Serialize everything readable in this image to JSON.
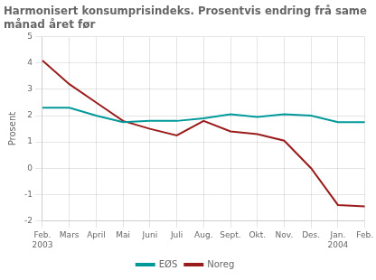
{
  "chart_data": {
    "type": "line",
    "title": "Harmonisert konsumprisindeks. Prosentvis endring frå same\nmånad året før",
    "y_label": "Prosent",
    "categories": [
      "Feb.\n2003",
      "Mars",
      "April",
      "Mai",
      "Juni",
      "Juli",
      "Aug.",
      "Sept.",
      "Okt.",
      "Nov.",
      "Des.",
      "Jan.\n2004",
      "Feb."
    ],
    "series": [
      {
        "name": "EØS",
        "color": "#00999A",
        "values": [
          2.3,
          2.3,
          2.0,
          1.75,
          1.8,
          1.8,
          1.9,
          2.05,
          1.95,
          2.05,
          2.0,
          1.75,
          1.75
        ]
      },
      {
        "name": "Noreg",
        "color": "#9B1C1C",
        "values": [
          4.1,
          3.2,
          2.5,
          1.8,
          1.5,
          1.25,
          1.8,
          1.4,
          1.3,
          1.05,
          0.0,
          -1.4,
          -1.45
        ]
      }
    ],
    "ylim": [
      -2,
      5
    ],
    "yticks": [
      -2,
      -1,
      0,
      1,
      2,
      3,
      4,
      5
    ],
    "grid": true,
    "legend": "bottom"
  }
}
